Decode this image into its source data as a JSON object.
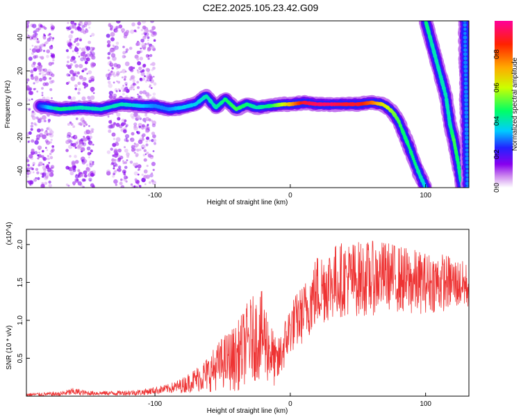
{
  "title": "C2E2.2025.105.23.42.G09",
  "chart_data": [
    {
      "type": "heatmap",
      "xlabel": "Height of straight line (km)",
      "ylabel": "Frequency (Hz)",
      "xlim": [
        -195,
        132
      ],
      "ylim": [
        -50,
        50
      ],
      "x_ticks": [
        -100,
        0,
        100
      ],
      "x_tick_labels": [
        "-100",
        "0",
        "100"
      ],
      "y_ticks": [
        -40,
        -20,
        0,
        20,
        40
      ],
      "y_tick_labels": [
        "-40",
        "-20",
        "0",
        "20",
        "40"
      ],
      "colorbar": {
        "label": "Normalized spectral amplitude",
        "range": [
          0,
          1
        ],
        "ticks": [
          0,
          0.2,
          0.4,
          0.6,
          0.8
        ],
        "tick_labels": [
          "0.0",
          "0.2",
          "0.4",
          "0.6",
          "0.8"
        ]
      },
      "ridge_main": {
        "height_km": [
          -185,
          -170,
          -155,
          -140,
          -125,
          -110,
          -100,
          -90,
          -80,
          -70,
          -62,
          -55,
          -48,
          -40,
          -32,
          -25,
          -15,
          -5,
          0,
          10,
          20,
          30,
          40,
          50,
          60,
          68,
          72,
          76,
          80,
          84,
          88,
          92,
          96,
          100
        ],
        "freq_hz": [
          -1,
          -3,
          -2,
          -3,
          0,
          -1,
          -1,
          -3,
          -2,
          0,
          5,
          -2,
          3,
          -3,
          0,
          -2,
          -1,
          0,
          0,
          1,
          0,
          0,
          0,
          0,
          1,
          0,
          -2,
          -5,
          -10,
          -18,
          -26,
          -35,
          -43,
          -50
        ],
        "amplitude": [
          0.25,
          0.45,
          0.4,
          0.4,
          0.4,
          0.35,
          0.3,
          0.3,
          0.35,
          0.35,
          0.4,
          0.4,
          0.45,
          0.5,
          0.45,
          0.4,
          0.45,
          0.6,
          0.7,
          0.9,
          0.95,
          0.95,
          0.9,
          0.9,
          0.8,
          0.65,
          0.6,
          0.55,
          0.5,
          0.45,
          0.45,
          0.45,
          0.4,
          0.35
        ]
      },
      "ridge_secondary": {
        "height_km": [
          100,
          105,
          110,
          115,
          118,
          121,
          124,
          127
        ],
        "freq_hz": [
          50,
          35,
          20,
          5,
          -12,
          -22,
          -35,
          -50
        ],
        "amplitude": [
          0.45,
          0.4,
          0.4,
          0.4,
          0.4,
          0.5,
          0.45,
          0.4
        ]
      },
      "ridge_edge": {
        "height_km": [
          129,
          130,
          131
        ],
        "freq_hz": [
          50,
          0,
          -50
        ],
        "amplitude": [
          0.3,
          0.3,
          0.3
        ]
      },
      "noise_regions_km": [
        [
          -195,
          -175
        ],
        [
          -165,
          -145
        ],
        [
          -135,
          -120
        ],
        [
          -118,
          -100
        ]
      ]
    },
    {
      "type": "line",
      "xlabel": "Height of straight line (km)",
      "ylabel": "SNR (10 * v/v)",
      "scale_label": "(x10^4)",
      "xlim": [
        -195,
        132
      ],
      "ylim": [
        0,
        2.2
      ],
      "x_ticks": [
        -100,
        0,
        100
      ],
      "x_tick_labels": [
        "-100",
        "0",
        "100"
      ],
      "y_ticks": [
        0.5,
        1.0,
        1.5,
        2.0
      ],
      "y_tick_labels": [
        "0.5",
        "1.0",
        "1.5",
        "2.0"
      ],
      "line_color": "#ee3333",
      "envelope": {
        "height_km": [
          -195,
          -170,
          -160,
          -150,
          -130,
          -110,
          -90,
          -80,
          -70,
          -60,
          -50,
          -40,
          -30,
          -20,
          -10,
          0,
          10,
          20,
          30,
          40,
          50,
          60,
          70,
          80,
          90,
          100,
          110,
          120,
          132
        ],
        "snr_mean": [
          0.02,
          0.03,
          0.06,
          0.04,
          0.04,
          0.05,
          0.1,
          0.14,
          0.22,
          0.3,
          0.45,
          0.5,
          0.75,
          0.8,
          0.4,
          0.9,
          1.1,
          1.4,
          1.5,
          1.55,
          1.55,
          1.55,
          1.6,
          1.55,
          1.5,
          1.5,
          1.5,
          1.5,
          1.45
        ],
        "snr_spread": [
          0.02,
          0.03,
          0.05,
          0.03,
          0.03,
          0.04,
          0.06,
          0.1,
          0.16,
          0.25,
          0.35,
          0.45,
          0.55,
          0.6,
          0.3,
          0.35,
          0.4,
          0.5,
          0.5,
          0.5,
          0.5,
          0.5,
          0.45,
          0.45,
          0.45,
          0.4,
          0.4,
          0.35,
          0.3
        ]
      }
    }
  ]
}
